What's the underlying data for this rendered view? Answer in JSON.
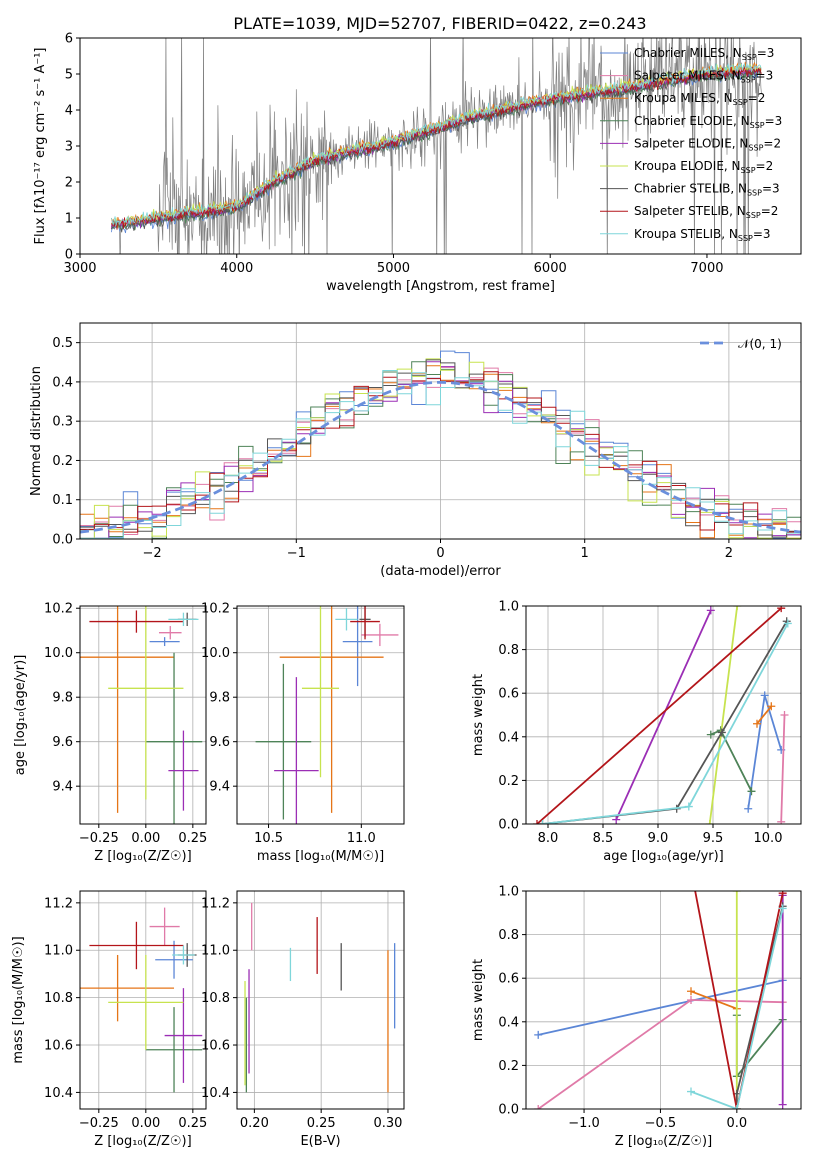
{
  "figure": {
    "title": "PLATE=1039, MJD=52707, FIBERID=0422, z=0.243"
  },
  "series": [
    {
      "name": "Chabrier MILES",
      "nssp": "3",
      "color": "#5b86d6"
    },
    {
      "name": "Salpeter MILES",
      "nssp": "3",
      "color": "#e07aa8"
    },
    {
      "name": "Kroupa MILES",
      "nssp": "2",
      "color": "#e57518"
    },
    {
      "name": "Chabrier ELODIE",
      "nssp": "3",
      "color": "#4e8358"
    },
    {
      "name": "Salpeter ELODIE",
      "nssp": "2",
      "color": "#9b2eb5"
    },
    {
      "name": "Kroupa ELODIE",
      "nssp": "2",
      "color": "#c7e34f"
    },
    {
      "name": "Chabrier STELIB",
      "nssp": "3",
      "color": "#555555"
    },
    {
      "name": "Salpeter STELIB",
      "nssp": "2",
      "color": "#b3151a"
    },
    {
      "name": "Kroupa STELIB",
      "nssp": "3",
      "color": "#7fd6da"
    }
  ],
  "chart_data": [
    {
      "id": "spectrum",
      "type": "line",
      "title": "PLATE=1039, MJD=52707, FIBERID=0422, z=0.243",
      "xlabel": "wavelength [Angstrom, rest frame]",
      "ylabel": "Flux [fλ10⁻¹⁷ erg cm⁻² s⁻¹ A⁻¹]",
      "xlim": [
        3000,
        7600
      ],
      "ylim": [
        0,
        6
      ],
      "xticks": [
        "3000",
        "4000",
        "5000",
        "6000",
        "7000"
      ],
      "yticks": [
        "0",
        "1",
        "2",
        "3",
        "4",
        "5",
        "6"
      ],
      "data_color": "#808080",
      "legend_suffix": "N",
      "legend_subscript": "SSP",
      "legend_placement": "upper right",
      "model_curve": {
        "x": [
          3200,
          3500,
          4000,
          4200,
          4500,
          5000,
          5500,
          6000,
          6500,
          7000,
          7300
        ],
        "y": [
          0.8,
          1.0,
          1.3,
          1.9,
          2.6,
          3.1,
          3.8,
          4.3,
          4.6,
          5.0,
          5.1
        ]
      },
      "observed_range": [
        3200,
        7350
      ]
    },
    {
      "id": "residuals",
      "type": "histogram",
      "xlabel": "(data-model)/error",
      "ylabel": "Normed distribution",
      "xlim": [
        -2.5,
        2.5
      ],
      "ylim": [
        0,
        0.55
      ],
      "xticks": [
        "−2",
        "−1",
        "0",
        "1",
        "2"
      ],
      "yticks": [
        "0.0",
        "0.1",
        "0.2",
        "0.3",
        "0.4",
        "0.5"
      ],
      "reference_label": "𝒩(0, 1)",
      "reference": "standard normal",
      "bin_width": 0.1
    },
    {
      "id": "age_vs_Z",
      "type": "scatter",
      "xlabel": "Z [log₁₀(Z/Z☉)]",
      "ylabel": "age  [log₁₀(age/yr)]",
      "xlim": [
        -0.35,
        0.32
      ],
      "ylim": [
        9.23,
        10.21
      ],
      "xticks": [
        "−0.25",
        "0.00",
        "0.25"
      ],
      "yticks": [
        "9.4",
        "9.6",
        "9.8",
        "10.0",
        "10.2"
      ],
      "points": [
        {
          "s": 0,
          "x": 0.1,
          "xerr": 0.08,
          "y": 10.05,
          "yerr": 0.02
        },
        {
          "s": 1,
          "x": 0.13,
          "xerr": 0.06,
          "y": 10.09,
          "yerr": 0.03
        },
        {
          "s": 2,
          "x": -0.15,
          "xerr": 0.3,
          "y": 9.98,
          "yerr": 0.7
        },
        {
          "s": 3,
          "x": 0.15,
          "xerr": 0.15,
          "y": 9.6,
          "yerr": 0.4
        },
        {
          "s": 4,
          "x": 0.2,
          "xerr": 0.08,
          "y": 9.47,
          "yerr": 0.18
        },
        {
          "s": 5,
          "x": 0.0,
          "xerr": 0.2,
          "y": 9.84,
          "yerr": 0.5
        },
        {
          "s": 6,
          "x": 0.22,
          "xerr": 0.05,
          "y": 10.15,
          "yerr": 0.03
        },
        {
          "s": 7,
          "x": -0.05,
          "xerr": 0.25,
          "y": 10.14,
          "yerr": 0.05
        },
        {
          "s": 8,
          "x": 0.2,
          "xerr": 0.08,
          "y": 10.15,
          "yerr": 0.03
        }
      ]
    },
    {
      "id": "age_vs_mass",
      "type": "scatter",
      "xlabel": "mass [log₁₀(M/M☉)]",
      "ylabel": "",
      "xlim": [
        10.33,
        11.23
      ],
      "ylim": [
        9.23,
        10.21
      ],
      "xticks": [
        "10.5",
        "11.0"
      ],
      "yticks": [
        "9.4",
        "9.6",
        "9.8",
        "10.0",
        "10.2"
      ],
      "points": [
        {
          "s": 0,
          "x": 10.98,
          "xerr": 0.08,
          "y": 10.05,
          "yerr": 0.2
        },
        {
          "s": 1,
          "x": 11.1,
          "xerr": 0.1,
          "y": 10.08,
          "yerr": 0.05
        },
        {
          "s": 2,
          "x": 10.84,
          "xerr": 0.28,
          "y": 9.98,
          "yerr": 0.7
        },
        {
          "s": 3,
          "x": 10.58,
          "xerr": 0.15,
          "y": 9.6,
          "yerr": 0.35
        },
        {
          "s": 4,
          "x": 10.65,
          "xerr": 0.12,
          "y": 9.47,
          "yerr": 0.42
        },
        {
          "s": 5,
          "x": 10.78,
          "xerr": 0.1,
          "y": 9.84,
          "yerr": 0.4
        },
        {
          "s": 6,
          "x": 11.02,
          "xerr": 0.03,
          "y": 10.15,
          "yerr": 0.08
        },
        {
          "s": 7,
          "x": 11.02,
          "xerr": 0.08,
          "y": 10.14,
          "yerr": 0.08
        },
        {
          "s": 8,
          "x": 10.92,
          "xerr": 0.06,
          "y": 10.15,
          "yerr": 0.05
        }
      ]
    },
    {
      "id": "weight_vs_age",
      "type": "line",
      "xlabel": "age  [log₁₀(age/yr)]",
      "ylabel": "mass weight",
      "xlim": [
        7.8,
        10.3
      ],
      "ylim": [
        0,
        1
      ],
      "xticks": [
        "8.0",
        "8.5",
        "9.0",
        "9.5",
        "10.0"
      ],
      "yticks": [
        "0.0",
        "0.2",
        "0.4",
        "0.6",
        "0.8",
        "1.0"
      ],
      "series": [
        {
          "s": 0,
          "x": [
            9.82,
            9.97,
            10.12
          ],
          "y": [
            0.07,
            0.59,
            0.34
          ]
        },
        {
          "s": 1,
          "x": [
            10.12,
            10.15
          ],
          "y": [
            0.01,
            0.5
          ]
        },
        {
          "s": 2,
          "x": [
            9.9,
            10.03
          ],
          "y": [
            0.46,
            0.54
          ]
        },
        {
          "s": 3,
          "x": [
            9.48,
            9.57,
            9.85
          ],
          "y": [
            0.41,
            0.43,
            0.15
          ]
        },
        {
          "s": 4,
          "x": [
            8.62,
            9.48
          ],
          "y": [
            0.02,
            0.98
          ]
        },
        {
          "s": 5,
          "x": [
            9.47,
            9.72
          ],
          "y": [
            0.0,
            1.0
          ]
        },
        {
          "s": 6,
          "x": [
            7.95,
            9.17,
            9.58,
            10.17
          ],
          "y": [
            0.0,
            0.07,
            0.42,
            0.93
          ]
        },
        {
          "s": 7,
          "x": [
            7.9,
            10.12
          ],
          "y": [
            0.0,
            0.99
          ]
        },
        {
          "s": 8,
          "x": [
            7.95,
            9.28,
            10.18
          ],
          "y": [
            0.0,
            0.08,
            0.92
          ]
        }
      ]
    },
    {
      "id": "mass_vs_Z",
      "type": "scatter",
      "xlabel": "Z [log₁₀(Z/Z☉)]",
      "ylabel": "mass [log₁₀(M/M☉)]",
      "xlim": [
        -0.35,
        0.32
      ],
      "ylim": [
        10.33,
        11.25
      ],
      "xticks": [
        "−0.25",
        "0.00",
        "0.25"
      ],
      "yticks": [
        "10.4",
        "10.6",
        "10.8",
        "11.0",
        "11.2"
      ],
      "points": [
        {
          "s": 0,
          "x": 0.15,
          "xerr": 0.1,
          "y": 10.96,
          "yerr": 0.08
        },
        {
          "s": 1,
          "x": 0.1,
          "xerr": 0.08,
          "y": 11.1,
          "yerr": 0.08
        },
        {
          "s": 2,
          "x": -0.15,
          "xerr": 0.3,
          "y": 10.84,
          "yerr": 0.14
        },
        {
          "s": 3,
          "x": 0.15,
          "xerr": 0.15,
          "y": 10.58,
          "yerr": 0.18
        },
        {
          "s": 4,
          "x": 0.2,
          "xerr": 0.1,
          "y": 10.64,
          "yerr": 0.2
        },
        {
          "s": 5,
          "x": 0.0,
          "xerr": 0.2,
          "y": 10.78,
          "yerr": 0.2
        },
        {
          "s": 6,
          "x": 0.22,
          "xerr": 0.05,
          "y": 10.98,
          "yerr": 0.05
        },
        {
          "s": 7,
          "x": -0.05,
          "xerr": 0.25,
          "y": 11.02,
          "yerr": 0.1
        },
        {
          "s": 8,
          "x": 0.2,
          "xerr": 0.06,
          "y": 10.98,
          "yerr": 0.04
        }
      ]
    },
    {
      "id": "mass_vs_ebv",
      "type": "scatter",
      "xlabel": "E(B-V)",
      "ylabel": "",
      "xlim": [
        0.187,
        0.312
      ],
      "ylim": [
        10.33,
        11.25
      ],
      "xticks": [
        "0.20",
        "0.25",
        "0.30"
      ],
      "yticks": [
        "10.4",
        "10.6",
        "10.8",
        "11.0",
        "11.2"
      ],
      "points": [
        {
          "s": 0,
          "x": 0.305,
          "xerr": 0.0,
          "y": 10.85,
          "yerr": 0.18
        },
        {
          "s": 1,
          "x": 0.198,
          "xerr": 0.0,
          "y": 11.1,
          "yerr": 0.1
        },
        {
          "s": 2,
          "x": 0.3,
          "xerr": 0.0,
          "y": 10.7,
          "yerr": 0.3
        },
        {
          "s": 3,
          "x": 0.194,
          "xerr": 0.0,
          "y": 10.6,
          "yerr": 0.2
        },
        {
          "s": 4,
          "x": 0.196,
          "xerr": 0.0,
          "y": 10.7,
          "yerr": 0.22
        },
        {
          "s": 5,
          "x": 0.193,
          "xerr": 0.0,
          "y": 10.65,
          "yerr": 0.22
        },
        {
          "s": 6,
          "x": 0.265,
          "xerr": 0.0,
          "y": 10.93,
          "yerr": 0.1
        },
        {
          "s": 7,
          "x": 0.247,
          "xerr": 0.0,
          "y": 11.02,
          "yerr": 0.12
        },
        {
          "s": 8,
          "x": 0.227,
          "xerr": 0.0,
          "y": 10.94,
          "yerr": 0.07
        }
      ]
    },
    {
      "id": "weight_vs_Z",
      "type": "line",
      "xlabel": "Z [log₁₀(Z/Z☉)]",
      "ylabel": "mass weight",
      "xlim": [
        -1.38,
        0.42
      ],
      "ylim": [
        0,
        1
      ],
      "xticks": [
        "−1.0",
        "−0.5",
        "0.0"
      ],
      "yticks": [
        "0.0",
        "0.2",
        "0.4",
        "0.6",
        "0.8",
        "1.0"
      ],
      "series": [
        {
          "s": 0,
          "x": [
            -1.3,
            0.3
          ],
          "y": [
            0.34,
            0.59
          ]
        },
        {
          "s": 1,
          "x": [
            -1.3,
            -0.3,
            0.3
          ],
          "y": [
            0.0,
            0.5,
            0.49
          ]
        },
        {
          "s": 2,
          "x": [
            -0.3,
            0.0
          ],
          "y": [
            0.54,
            0.46
          ]
        },
        {
          "s": 3,
          "x": [
            0.0,
            0.0,
            0.3
          ],
          "y": [
            0.43,
            0.15,
            0.41
          ]
        },
        {
          "s": 4,
          "x": [
            0.3,
            0.3
          ],
          "y": [
            0.02,
            0.98
          ]
        },
        {
          "s": 5,
          "x": [
            0.0,
            0.0
          ],
          "y": [
            0.0,
            1.0
          ]
        },
        {
          "s": 6,
          "x": [
            0.0,
            0.0,
            0.3
          ],
          "y": [
            0.0,
            0.07,
            0.93
          ]
        },
        {
          "s": 7,
          "x": [
            -0.3,
            0.0,
            0.3
          ],
          "y": [
            1.1,
            0.0,
            0.99
          ]
        },
        {
          "s": 8,
          "x": [
            -0.3,
            0.0,
            0.3
          ],
          "y": [
            0.08,
            0.0,
            0.92
          ]
        }
      ]
    }
  ]
}
